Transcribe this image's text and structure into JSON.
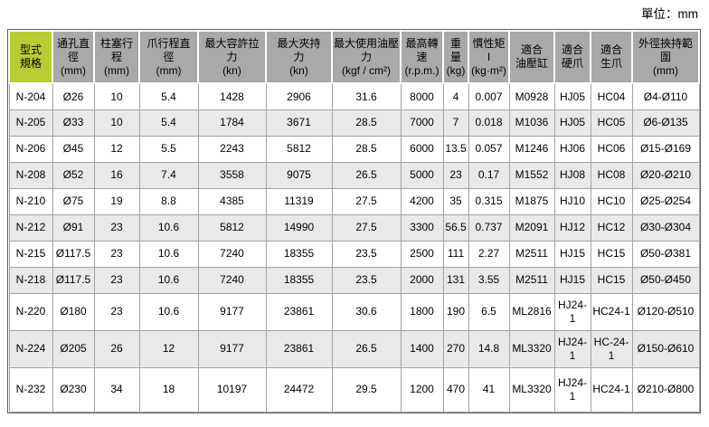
{
  "unit_label": "單位：mm",
  "colors": {
    "model_header_bg": "#b8cc34",
    "header_bg": "#a9a9a9",
    "row_alt_bg": "#e9e9e9",
    "grid_border": "#a3a3a3",
    "outer_border": "#5f5f5f",
    "text": "#000000"
  },
  "table": {
    "columns": [
      {
        "label": "型式\n規格",
        "unit": ""
      },
      {
        "label": "通孔直\n徑",
        "unit": "(mm)"
      },
      {
        "label": "柱塞行\n程",
        "unit": "(mm)"
      },
      {
        "label": "爪行程直\n徑",
        "unit": "(mm)"
      },
      {
        "label": "最大容許拉\n力",
        "unit": "(kn)"
      },
      {
        "label": "最大夾持\n力",
        "unit": "(kn)"
      },
      {
        "label": "最大使用油壓\n力",
        "unit": "(kgf / cm²)"
      },
      {
        "label": "最高轉\n速",
        "unit": "(r.p.m.)"
      },
      {
        "label": "重\n量",
        "unit": "(kg)"
      },
      {
        "label": "慣性矩 I",
        "unit": "(kg·m²)"
      },
      {
        "label": "適合\n油壓缸",
        "unit": ""
      },
      {
        "label": "適合\n硬爪",
        "unit": ""
      },
      {
        "label": "適合\n生爪",
        "unit": ""
      },
      {
        "label": "外徑挾持範\n圍",
        "unit": "(mm)"
      }
    ],
    "rows": [
      [
        "N-204",
        "Ø26",
        "10",
        "5.4",
        "1428",
        "2906",
        "31.6",
        "8000",
        "4",
        "0.007",
        "M0928",
        "HJ05",
        "HC04",
        "Ø4-Ø110"
      ],
      [
        "N-205",
        "Ø33",
        "10",
        "5.4",
        "1784",
        "3671",
        "28.5",
        "7000",
        "7",
        "0.018",
        "M1036",
        "HJ05",
        "HC05",
        "Ø6-Ø135"
      ],
      [
        "N-206",
        "Ø45",
        "12",
        "5.5",
        "2243",
        "5812",
        "28.5",
        "6000",
        "13.5",
        "0.057",
        "M1246",
        "HJ06",
        "HC06",
        "Ø15-Ø169"
      ],
      [
        "N-208",
        "Ø52",
        "16",
        "7.4",
        "3558",
        "9075",
        "26.5",
        "5000",
        "23",
        "0.17",
        "M1552",
        "HJ08",
        "HC08",
        "Ø20-Ø210"
      ],
      [
        "N-210",
        "Ø75",
        "19",
        "8.8",
        "4385",
        "11319",
        "27.5",
        "4200",
        "35",
        "0.315",
        "M1875",
        "HJ10",
        "HC10",
        "Ø25-Ø254"
      ],
      [
        "N-212",
        "Ø91",
        "23",
        "10.6",
        "5812",
        "14990",
        "27.5",
        "3300",
        "56.5",
        "0.737",
        "M2091",
        "HJ12",
        "HC12",
        "Ø30-Ø304"
      ],
      [
        "N-215",
        "Ø117.5",
        "23",
        "10.6",
        "7240",
        "18355",
        "23.5",
        "2500",
        "111",
        "2.27",
        "M2511",
        "HJ15",
        "HC15",
        "Ø50-Ø381"
      ],
      [
        "N-218",
        "Ø117.5",
        "23",
        "10.6",
        "7240",
        "18355",
        "23.5",
        "2000",
        "131",
        "3.55",
        "M2511",
        "HJ15",
        "HC15",
        "Ø50-Ø450"
      ],
      [
        "N-220",
        "Ø180",
        "23",
        "10.6",
        "9177",
        "23861",
        "30.6",
        "1800",
        "190",
        "6.5",
        "ML2816",
        "HJ24-1",
        "HC24-1",
        "Ø120-Ø510"
      ],
      [
        "N-224",
        "Ø205",
        "26",
        "12",
        "9177",
        "23861",
        "26.5",
        "1400",
        "270",
        "14.8",
        "ML3320",
        "HJ24-1",
        "HC-24-1",
        "Ø150-Ø610"
      ],
      [
        "N-232",
        "Ø230",
        "34",
        "18",
        "10197",
        "24472",
        "29.5",
        "1200",
        "470",
        "41",
        "ML3320",
        "HJ24-1",
        "HC24-1",
        "Ø210-Ø800"
      ]
    ]
  }
}
